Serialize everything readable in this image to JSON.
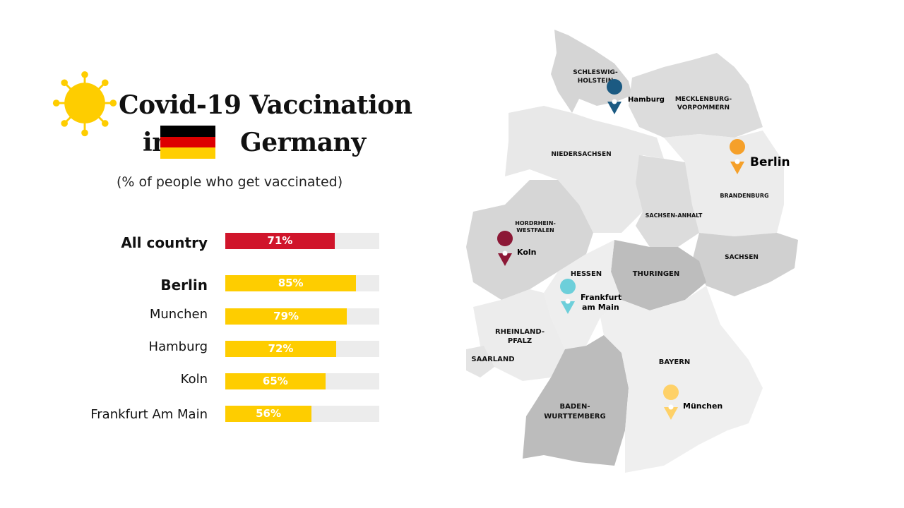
{
  "title": {
    "line1": "Covid-19 Vaccination",
    "line2a": "in",
    "line2b": "Germany"
  },
  "subtitle": "(% of people who get vaccinated)",
  "colors": {
    "overall": "#d0152b",
    "city": "#fecd00",
    "track": "#ececec"
  },
  "flag_colors": [
    "#000000",
    "#dd0000",
    "#ffce00"
  ],
  "chart_data": {
    "type": "bar",
    "orientation": "horizontal",
    "categories": [
      "All country",
      "Berlin",
      "Munchen",
      "Hamburg",
      "Koln",
      "Frankfurt  Am Main"
    ],
    "values": [
      71,
      85,
      79,
      72,
      65,
      56
    ],
    "value_labels": [
      "71%",
      "85%",
      "79%",
      "72%",
      "65%",
      "56%"
    ],
    "unit": "%",
    "xlim": [
      0,
      100
    ],
    "title": "Covid-19 Vaccination in Germany",
    "subtitle": "(% of people who get vaccinated)"
  },
  "map": {
    "regions": [
      "SCHLESWIG-",
      "HOLSTEIN",
      "MECKLENBURG-",
      "VORPOMMERN",
      "NIEDERSACHSEN",
      "BRANDENBURG",
      "SACHSEN-ANHALT",
      "HORDRHEIN-",
      "WESTFALEN",
      "SACHSEN",
      "HESSEN",
      "THURINGEN",
      "RHEINLAND-",
      "PFALZ",
      "SAARLAND",
      "BAYERN",
      "BADEN-",
      "WURTTEMBERG"
    ],
    "cities": [
      {
        "label": "Hamburg",
        "color": "#1b5a82"
      },
      {
        "label": "Berlin",
        "color": "#f5a02a"
      },
      {
        "label": "Koln",
        "color": "#8c1836"
      },
      {
        "label": "Frankfurt",
        "label2": "am Main",
        "color": "#6dcfda"
      },
      {
        "label": "München",
        "color": "#fed168"
      }
    ]
  }
}
